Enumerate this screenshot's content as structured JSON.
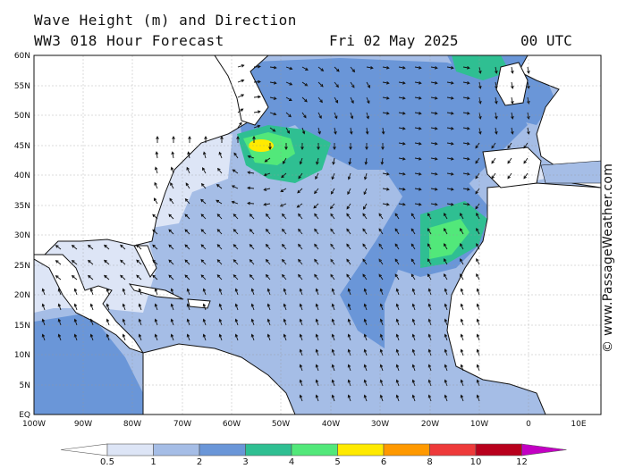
{
  "header": {
    "title": "Wave Height (m) and Direction",
    "model": "WW3 018 Hour Forecast",
    "date": "Fri 02 May 2025",
    "time": "00 UTC"
  },
  "credit": "© www.PassageWeather.com",
  "map": {
    "lat_labels": [
      "60N",
      "55N",
      "50N",
      "45N",
      "40N",
      "35N",
      "30N",
      "25N",
      "20N",
      "15N",
      "10N",
      "5N",
      "EQ"
    ],
    "lon_labels": [
      "100W",
      "90W",
      "80W",
      "70W",
      "60W",
      "50W",
      "40W",
      "30W",
      "20W",
      "10W",
      "0",
      "10E"
    ],
    "colors": {
      "land": "#ffffff",
      "sea_low": "#dde5f6",
      "band_1_2": "#a5bde6",
      "band_2_3": "#6a96d8",
      "band_3_4": "#2fbf92",
      "band_4_5": "#52e87a",
      "band_5_6": "#ffea00"
    }
  },
  "legend": {
    "ticks": [
      "0.5",
      "1",
      "2",
      "3",
      "4",
      "5",
      "6",
      "8",
      "10",
      "12"
    ],
    "colors": [
      "#ffffff",
      "#dde5f6",
      "#a5bde6",
      "#6a96d8",
      "#2fbf92",
      "#52e87a",
      "#ffea00",
      "#ff9900",
      "#ee3a3a",
      "#b8001c",
      "#c300c3"
    ]
  }
}
